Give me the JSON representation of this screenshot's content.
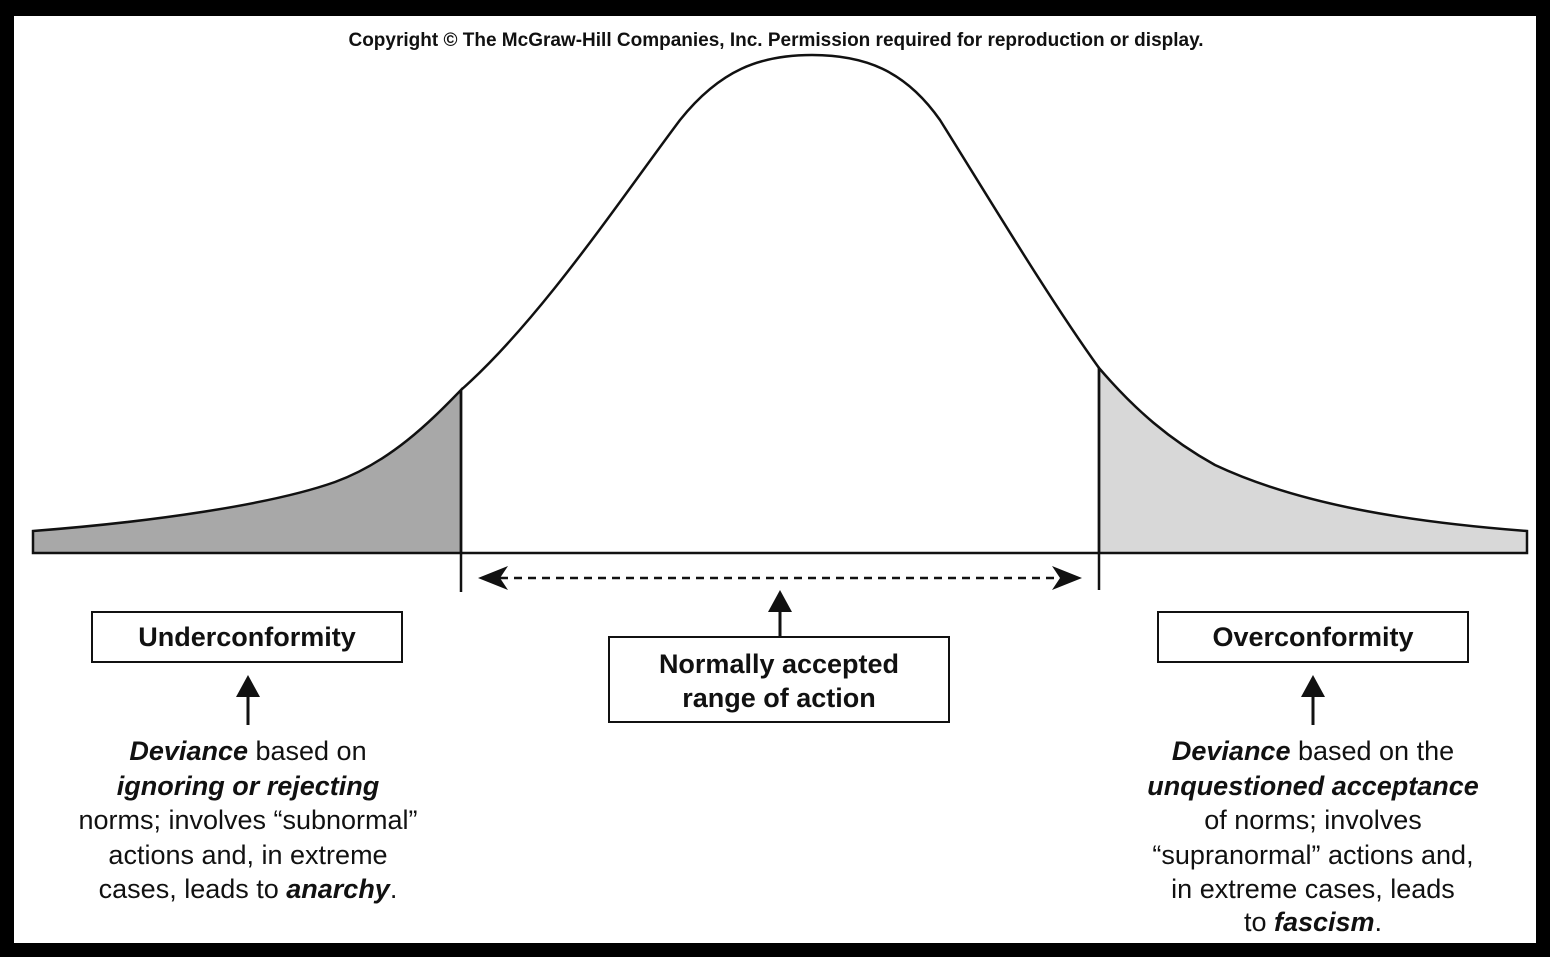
{
  "copyright": "Copyright © The McGraw-Hill Companies, Inc. Permission required for reproduction or display.",
  "left_box": "Underconformity",
  "center_box": {
    "line1": "Normally accepted",
    "line2": "range of action"
  },
  "right_box": "Overconformity",
  "left_desc": {
    "l1_em": "Deviance",
    "l1_rest": " based on",
    "l2_em": "ignoring or rejecting",
    "l3": "norms; involves “subnormal”",
    "l4": "actions and, in extreme",
    "l5_pre": "cases, leads to ",
    "l5_em": "anarchy",
    "l5_post": "."
  },
  "right_desc": {
    "l1_em": "Deviance",
    "l1_rest": " based on the",
    "l2_em": "unquestioned acceptance",
    "l3": "of norms; involves",
    "l4": "“supranormal” actions and,",
    "l5": "in extreme cases, leads",
    "l6_pre": "to ",
    "l6_em": "fascism",
    "l6_post": "."
  },
  "colors": {
    "left_tail": "#a8a8a8",
    "right_tail": "#d8d8d8",
    "line": "#111111"
  }
}
